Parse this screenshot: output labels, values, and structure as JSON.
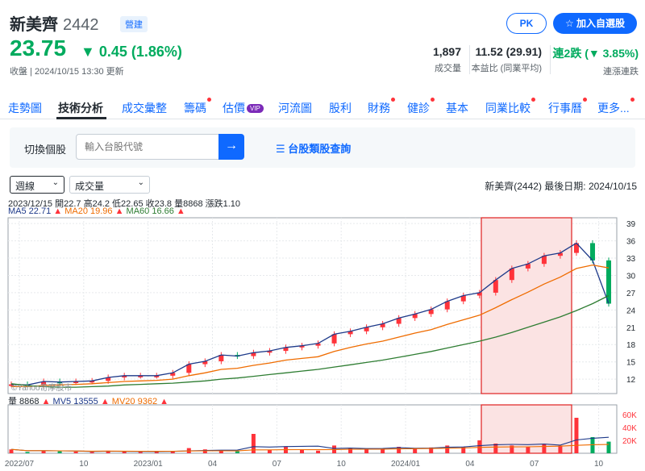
{
  "header": {
    "name": "新美齊",
    "code": "2442",
    "badge": "營建",
    "price": "23.75",
    "change": "▼ 0.45 (1.86%)",
    "time": "收盤 | 2024/10/15 13:30 更新",
    "pk_label": "PK",
    "fav_label": "加入自選股"
  },
  "stats": [
    {
      "value": "1,897",
      "label": "成交量"
    },
    {
      "value": "11.52 (29.91)",
      "label": "本益比 (同業平均)"
    },
    {
      "value": "連2跌 (▼ 3.85%)",
      "label": "連漲連跌"
    }
  ],
  "tabs": [
    {
      "label": "走勢圖",
      "dot": false
    },
    {
      "label": "技術分析",
      "dot": false
    },
    {
      "label": "成交彙整",
      "dot": false
    },
    {
      "label": "籌碼",
      "dot": true
    },
    {
      "label": "估價",
      "dot": false
    },
    {
      "label": "河流圖",
      "dot": false
    },
    {
      "label": "股利",
      "dot": false
    },
    {
      "label": "財務",
      "dot": true
    },
    {
      "label": "健診",
      "dot": true
    },
    {
      "label": "基本",
      "dot": false
    },
    {
      "label": "同業比較",
      "dot": true
    },
    {
      "label": "行事曆",
      "dot": true
    },
    {
      "label": "更多...",
      "dot": true
    }
  ],
  "vip_label": "VIP",
  "search": {
    "label": "切換個股",
    "placeholder": "輸入台股代號",
    "button_icon": "→",
    "link": "台股類股查詢"
  },
  "controls": {
    "period": "週線",
    "indicator": "成交量"
  },
  "chart_info": "新美齊(2442)   最後日期: 2024/10/15",
  "ohlc_line": "2023/12/15 開22.7 高24.2 低22.65 收23.8 量8868 漲跌1.10",
  "ma_legend": [
    {
      "label": "MA5 22.71",
      "color": "#1e3a8a"
    },
    {
      "label": "MA20 19.96",
      "color": "#ef6c00"
    },
    {
      "label": "MA60 16.66",
      "color": "#2e7d32"
    }
  ],
  "vol_legend": [
    {
      "label": "量 8868",
      "color": "#232a31"
    },
    {
      "label": "MV5 13555",
      "color": "#1e3a8a"
    },
    {
      "label": "MV20 9362",
      "color": "#ef6c00"
    }
  ],
  "watermark": "©Yahoo奇摩股市",
  "colors": {
    "up": "#ff333a",
    "down": "#00ab5e",
    "accent": "#0f69ff",
    "ma5": "#1e3a8a",
    "ma20": "#ef6c00",
    "ma60": "#2e7d32",
    "highlight_fill": "#fbe3e3",
    "highlight_border": "#e02020"
  },
  "chart_data": {
    "type": "line",
    "title": "",
    "x_ticks": [
      "2022/07",
      "10",
      "2023/01",
      "04",
      "07",
      "10",
      "2024/01",
      "04",
      "07",
      "10"
    ],
    "y_ticks": [
      12,
      15,
      18,
      21,
      24,
      27,
      30,
      33,
      36,
      39
    ],
    "ylim": [
      9.5,
      40
    ],
    "volume_ticks": [
      "20K",
      "40K",
      "60K"
    ],
    "volume_ylim": [
      0,
      75000
    ],
    "highlight_range": [
      "2024/04",
      "2024/08"
    ],
    "series": [
      {
        "name": "MA5",
        "values": [
          11.1,
          11.0,
          11.6,
          11.5,
          11.6,
          11.7,
          12.3,
          12.6,
          12.6,
          12.6,
          13.1,
          14.6,
          15.1,
          16.2,
          16.0,
          16.6,
          16.9,
          17.5,
          17.8,
          18.2,
          19.8,
          20.3,
          21.0,
          21.6,
          22.6,
          23.3,
          24.1,
          25.5,
          26.5,
          27.0,
          29.2,
          31.2,
          32.0,
          33.4,
          33.9,
          35.6,
          32.6,
          25.1
        ]
      },
      {
        "name": "MA20",
        "values": [
          10.7,
          10.7,
          10.9,
          11.0,
          11.1,
          11.2,
          11.4,
          11.6,
          11.7,
          11.8,
          12.0,
          12.6,
          13.1,
          13.7,
          13.9,
          14.4,
          14.8,
          15.3,
          15.6,
          15.9,
          16.8,
          17.5,
          18.1,
          18.6,
          19.3,
          20.0,
          20.6,
          21.5,
          22.3,
          23.1,
          24.4,
          25.8,
          27.1,
          28.5,
          29.7,
          31.2,
          31.8,
          31.3
        ]
      },
      {
        "name": "MA60",
        "values": [
          11.2,
          10.9,
          10.7,
          10.6,
          10.6,
          10.7,
          10.8,
          11.0,
          11.1,
          11.2,
          11.3,
          11.5,
          11.7,
          12.0,
          12.2,
          12.5,
          12.8,
          13.1,
          13.4,
          13.7,
          14.1,
          14.5,
          14.9,
          15.3,
          15.8,
          16.3,
          16.8,
          17.4,
          18.0,
          18.6,
          19.3,
          20.1,
          21.0,
          21.9,
          22.8,
          23.9,
          25.1,
          26.5
        ]
      }
    ],
    "volume": [
      6000,
      2000,
      4000,
      3000,
      2500,
      2000,
      4000,
      3000,
      2000,
      2000,
      3500,
      8000,
      6000,
      4000,
      3000,
      30000,
      5000,
      10000,
      6000,
      4000,
      12000,
      8000,
      6000,
      7000,
      10000,
      8000,
      9000,
      12000,
      10000,
      20000,
      15000,
      12000,
      10000,
      14000,
      12000,
      55000,
      25000,
      18000
    ]
  }
}
